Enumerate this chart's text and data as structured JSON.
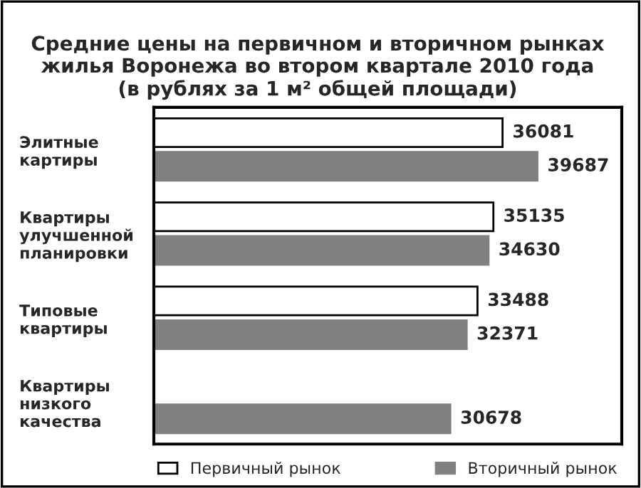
{
  "chart_data": {
    "type": "bar",
    "orientation": "horizontal",
    "title": "Средние цены на первичном и вторичном рынках\nжилья Воронежа во втором квартале 2010 года\n(в рублях за 1 м² общей площади)",
    "categories": [
      "Элитные\nкартиры",
      "Квартиры\nулучшенной\nпланировки",
      "Типовые\nквартиры",
      "Квартиры\nнизкого\nкачества"
    ],
    "series": [
      {
        "name": "Первичный рынок",
        "color": "#ffffff",
        "values": [
          36081,
          35135,
          33488,
          null
        ]
      },
      {
        "name": "Вторичный рынок",
        "color": "#808080",
        "values": [
          39687,
          34630,
          32371,
          30678
        ]
      }
    ],
    "data_labels": true,
    "legend": "bottom",
    "grid": false
  }
}
